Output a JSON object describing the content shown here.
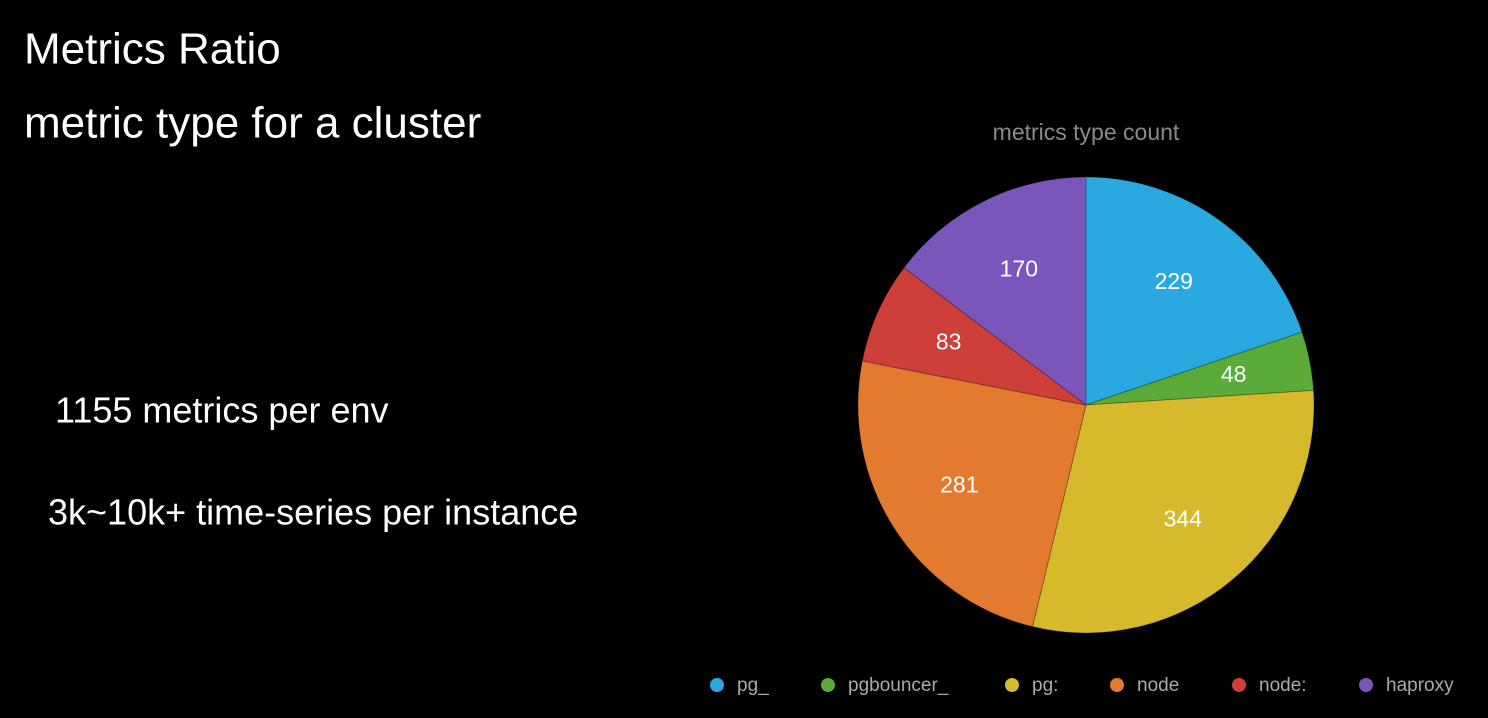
{
  "slide": {
    "title": "Metrics Ratio",
    "subtitle": "metric type for a cluster",
    "notes": [
      "1155 metrics per env",
      "3k~10k+ time-series per instance"
    ]
  },
  "chart_data": {
    "type": "pie",
    "title": "metrics type count",
    "categories": [
      "pg_",
      "pgbouncer_",
      "pg:",
      "node",
      "node:",
      "haproxy"
    ],
    "values": [
      229,
      48,
      344,
      281,
      83,
      170
    ],
    "colors": [
      "#2aa9e0",
      "#5aab3a",
      "#d6ba2c",
      "#e27a30",
      "#cf3f3a",
      "#7b56ba"
    ],
    "legend": "bottom"
  }
}
